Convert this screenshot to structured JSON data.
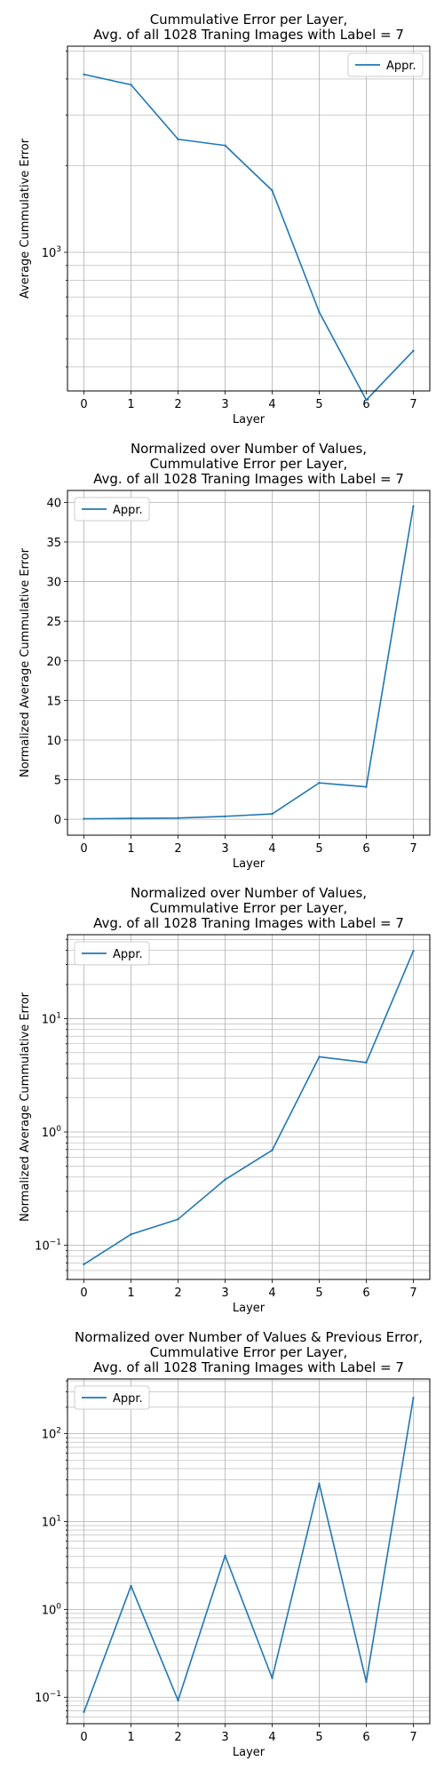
{
  "chart_data": [
    {
      "type": "line",
      "title": [
        "Cummulative Error per Layer,",
        "Avg. of all 1028 Traning Images with Label = 7"
      ],
      "xlabel": "Layer",
      "ylabel": "Average Cummulative Error",
      "x": [
        0,
        1,
        2,
        3,
        4,
        5,
        6,
        7
      ],
      "xlim": [
        -0.35,
        7.35
      ],
      "yscale": "log",
      "ylim": [
        330,
        5200
      ],
      "yticks": [
        {
          "value": 1000,
          "base": "10",
          "exp": "3"
        }
      ],
      "series": [
        {
          "name": "Appr.",
          "color": "#1f77b4",
          "values": [
            4150,
            3820,
            2470,
            2350,
            1640,
            620,
            307,
            455
          ]
        }
      ],
      "legend": "upper right",
      "grid": true
    },
    {
      "type": "line",
      "title": [
        "Normalized over Number of Values,",
        "Cummulative Error per Layer,",
        "Avg. of all 1028 Traning Images with Label = 7"
      ],
      "xlabel": "Layer",
      "ylabel": "Normalized Average Cummulative Error",
      "x": [
        0,
        1,
        2,
        3,
        4,
        5,
        6,
        7
      ],
      "xlim": [
        -0.35,
        7.35
      ],
      "yscale": "linear",
      "ylim": [
        -2,
        41.5
      ],
      "yticks": [
        0,
        5,
        10,
        15,
        20,
        25,
        30,
        35,
        40
      ],
      "series": [
        {
          "name": "Appr.",
          "color": "#1f77b4",
          "values": [
            0.07,
            0.12,
            0.17,
            0.38,
            0.68,
            4.6,
            4.1,
            39.5
          ]
        }
      ],
      "legend": "upper left",
      "grid": true
    },
    {
      "type": "line",
      "title": [
        "Normalized over Number of Values,",
        "Cummulative Error per Layer,",
        "Avg. of all 1028 Traning Images with Label = 7"
      ],
      "xlabel": "Layer",
      "ylabel": "Normalized Average Cummulative Error",
      "x": [
        0,
        1,
        2,
        3,
        4,
        5,
        6,
        7
      ],
      "xlim": [
        -0.35,
        7.35
      ],
      "yscale": "log",
      "ylim": [
        0.05,
        55
      ],
      "yticks": [
        {
          "value": 0.1,
          "base": "10",
          "exp": "−1"
        },
        {
          "value": 1,
          "base": "10",
          "exp": "0"
        },
        {
          "value": 10,
          "base": "10",
          "exp": "1"
        }
      ],
      "series": [
        {
          "name": "Appr.",
          "color": "#1f77b4",
          "values": [
            0.068,
            0.125,
            0.17,
            0.38,
            0.69,
            4.6,
            4.1,
            39.5
          ]
        }
      ],
      "legend": "upper left",
      "grid": true
    },
    {
      "type": "line",
      "title": [
        "Normalized over Number of Values & Previous Error,",
        "Cummulative Error per Layer,",
        "Avg. of all 1028 Traning Images with Label = 7"
      ],
      "xlabel": "Layer",
      "ylabel": "",
      "x": [
        0,
        1,
        2,
        3,
        4,
        5,
        6,
        7
      ],
      "xlim": [
        -0.35,
        7.35
      ],
      "yscale": "log",
      "ylim": [
        0.05,
        420
      ],
      "yticks": [
        {
          "value": 0.1,
          "base": "10",
          "exp": "−1"
        },
        {
          "value": 1,
          "base": "10",
          "exp": "0"
        },
        {
          "value": 10,
          "base": "10",
          "exp": "1"
        },
        {
          "value": 100,
          "base": "10",
          "exp": "2"
        }
      ],
      "series": [
        {
          "name": "Appr.",
          "color": "#1f77b4",
          "values": [
            0.068,
            1.85,
            0.092,
            4.1,
            0.165,
            27,
            0.15,
            255
          ]
        }
      ],
      "legend": "upper left",
      "grid": true
    }
  ]
}
